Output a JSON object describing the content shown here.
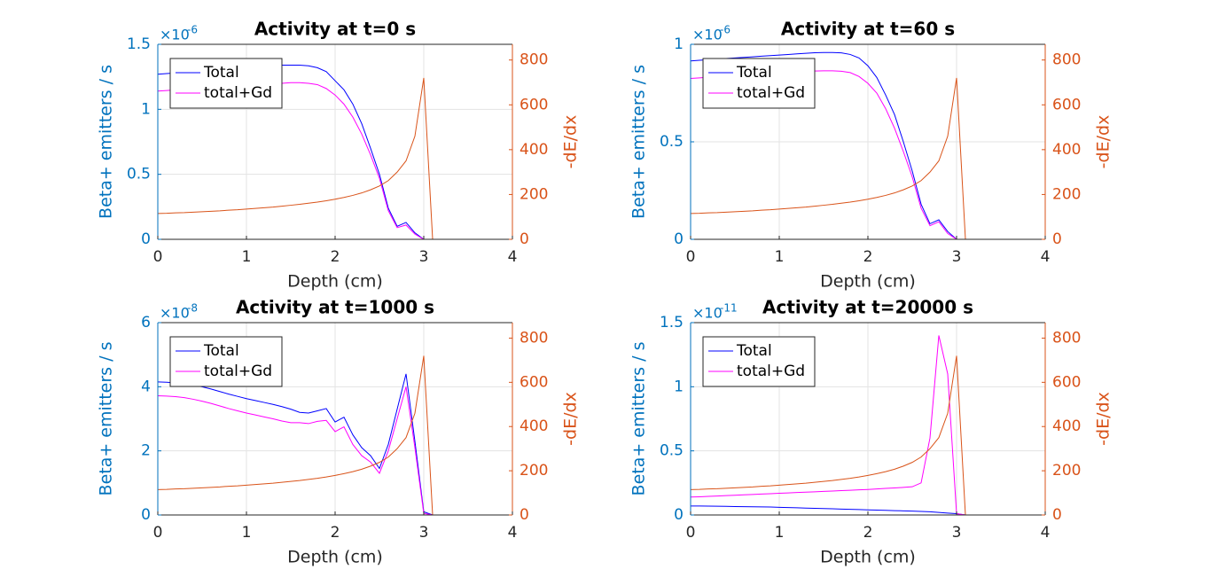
{
  "chart_data": [
    {
      "type": "line",
      "title": "Activity at t=0 s",
      "xlabel": "Depth (cm)",
      "ylabel": "Beta+ emitters / s",
      "y2label": "-dE/dx",
      "y_exponent_base": "×10",
      "y_exponent": "-6",
      "y_color": "#0072bd",
      "y2_color": "#d95319",
      "grid": true,
      "legend": "northwest",
      "x": [
        0,
        0.1,
        0.2,
        0.3,
        0.4,
        0.5,
        0.6,
        0.7,
        0.8,
        0.9,
        1,
        1.1,
        1.2,
        1.3,
        1.4,
        1.5,
        1.6,
        1.7,
        1.8,
        1.9,
        2,
        2.1,
        2.2,
        2.3,
        2.4,
        2.5,
        2.6,
        2.7,
        2.8,
        2.9,
        3,
        3.1,
        4
      ],
      "xlim": [
        0,
        4
      ],
      "xticks": [
        0,
        1,
        2,
        3,
        4
      ],
      "ylim": [
        0,
        1.5
      ],
      "yticks": [
        0,
        0.5,
        1,
        1.5
      ],
      "y2lim": [
        0,
        870
      ],
      "y2ticks": [
        0,
        200,
        400,
        600,
        800
      ],
      "series": [
        {
          "name": "Total",
          "color": "#0000ff",
          "values": [
            1.27,
            1.275,
            1.28,
            1.285,
            1.29,
            1.295,
            1.3,
            1.305,
            1.31,
            1.315,
            1.32,
            1.325,
            1.33,
            1.335,
            1.34,
            1.34,
            1.34,
            1.335,
            1.32,
            1.29,
            1.22,
            1.15,
            1.04,
            0.89,
            0.7,
            0.5,
            0.24,
            0.1,
            0.13,
            0.05,
            0,
            0,
            0
          ]
        },
        {
          "name": "total+Gd",
          "color": "#ff00ff",
          "values": [
            1.14,
            1.145,
            1.15,
            1.155,
            1.16,
            1.165,
            1.17,
            1.175,
            1.18,
            1.185,
            1.19,
            1.19,
            1.195,
            1.2,
            1.2,
            1.205,
            1.205,
            1.2,
            1.19,
            1.16,
            1.11,
            1.04,
            0.94,
            0.81,
            0.65,
            0.47,
            0.22,
            0.09,
            0.11,
            0.04,
            0,
            0,
            0
          ]
        },
        {
          "axis": "y2",
          "color": "#d95319",
          "values": [
            115,
            116,
            118,
            119,
            121,
            123,
            125,
            127,
            130,
            132,
            135,
            138,
            141,
            144,
            148,
            152,
            156,
            161,
            166,
            172,
            179,
            187,
            196,
            207,
            221,
            238,
            262,
            300,
            350,
            460,
            720,
            0,
            0
          ]
        }
      ]
    },
    {
      "type": "line",
      "title": "Activity at t=60 s",
      "xlabel": "Depth (cm)",
      "ylabel": "Beta+ emitters / s",
      "y2label": "-dE/dx",
      "y_exponent_base": "×10",
      "y_exponent": "-6",
      "y_color": "#0072bd",
      "y2_color": "#d95319",
      "grid": true,
      "legend": "northwest",
      "x": [
        0,
        0.1,
        0.2,
        0.3,
        0.4,
        0.5,
        0.6,
        0.7,
        0.8,
        0.9,
        1,
        1.1,
        1.2,
        1.3,
        1.4,
        1.5,
        1.6,
        1.7,
        1.8,
        1.9,
        2,
        2.1,
        2.2,
        2.3,
        2.4,
        2.5,
        2.6,
        2.7,
        2.8,
        2.9,
        3,
        3.1,
        4
      ],
      "xlim": [
        0,
        4
      ],
      "xticks": [
        0,
        1,
        2,
        3,
        4
      ],
      "ylim": [
        0,
        1
      ],
      "yticks": [
        0,
        0.5,
        1
      ],
      "y2lim": [
        0,
        870
      ],
      "y2ticks": [
        0,
        200,
        400,
        600,
        800
      ],
      "series": [
        {
          "name": "Total",
          "color": "#0000ff",
          "values": [
            0.915,
            0.918,
            0.921,
            0.924,
            0.927,
            0.93,
            0.933,
            0.936,
            0.939,
            0.942,
            0.945,
            0.948,
            0.951,
            0.954,
            0.957,
            0.958,
            0.958,
            0.956,
            0.948,
            0.93,
            0.89,
            0.83,
            0.74,
            0.64,
            0.5,
            0.35,
            0.18,
            0.08,
            0.1,
            0.04,
            0,
            0,
            0
          ]
        },
        {
          "name": "total+Gd",
          "color": "#ff00ff",
          "values": [
            0.825,
            0.828,
            0.831,
            0.834,
            0.837,
            0.84,
            0.843,
            0.846,
            0.849,
            0.852,
            0.855,
            0.857,
            0.859,
            0.861,
            0.863,
            0.864,
            0.864,
            0.862,
            0.855,
            0.835,
            0.8,
            0.75,
            0.67,
            0.57,
            0.45,
            0.32,
            0.16,
            0.07,
            0.09,
            0.03,
            0,
            0,
            0
          ]
        },
        {
          "axis": "y2",
          "color": "#d95319",
          "values": [
            115,
            116,
            118,
            119,
            121,
            123,
            125,
            127,
            130,
            132,
            135,
            138,
            141,
            144,
            148,
            152,
            156,
            161,
            166,
            172,
            179,
            187,
            196,
            207,
            221,
            238,
            262,
            300,
            350,
            460,
            720,
            0,
            0
          ]
        }
      ]
    },
    {
      "type": "line",
      "title": "Activity at t=1000 s",
      "xlabel": "Depth (cm)",
      "ylabel": "Beta+ emitters / s",
      "y2label": "-dE/dx",
      "y_exponent_base": "×10",
      "y_exponent": "-8",
      "y_color": "#0072bd",
      "y2_color": "#d95319",
      "grid": true,
      "legend": "northwest",
      "x": [
        0,
        0.1,
        0.2,
        0.3,
        0.4,
        0.5,
        0.6,
        0.7,
        0.8,
        0.9,
        1,
        1.1,
        1.2,
        1.3,
        1.4,
        1.5,
        1.6,
        1.7,
        1.8,
        1.9,
        2,
        2.1,
        2.2,
        2.3,
        2.4,
        2.5,
        2.6,
        2.7,
        2.8,
        2.9,
        3,
        3.1,
        4
      ],
      "xlim": [
        0,
        4
      ],
      "xticks": [
        0,
        1,
        2,
        3,
        4
      ],
      "ylim": [
        0,
        6
      ],
      "yticks": [
        0,
        2,
        4,
        6
      ],
      "y2lim": [
        0,
        870
      ],
      "y2ticks": [
        0,
        200,
        400,
        600,
        800
      ],
      "series": [
        {
          "name": "Total",
          "color": "#0000ff",
          "values": [
            4.15,
            4.14,
            4.12,
            4.1,
            4.05,
            4.0,
            3.93,
            3.85,
            3.77,
            3.7,
            3.63,
            3.57,
            3.51,
            3.45,
            3.38,
            3.3,
            3.2,
            3.18,
            3.25,
            3.32,
            2.9,
            3.05,
            2.5,
            2.1,
            1.85,
            1.45,
            2.2,
            3.3,
            4.4,
            2.3,
            0.1,
            0,
            0
          ]
        },
        {
          "name": "total+Gd",
          "color": "#ff00ff",
          "values": [
            3.72,
            3.71,
            3.69,
            3.66,
            3.61,
            3.55,
            3.48,
            3.4,
            3.32,
            3.25,
            3.18,
            3.12,
            3.06,
            3.0,
            2.93,
            2.88,
            2.88,
            2.85,
            2.92,
            2.95,
            2.6,
            2.75,
            2.2,
            1.85,
            1.65,
            1.3,
            2.0,
            3.0,
            4.0,
            2.1,
            0.05,
            0,
            0
          ]
        },
        {
          "axis": "y2",
          "color": "#d95319",
          "values": [
            115,
            116,
            118,
            119,
            121,
            123,
            125,
            127,
            130,
            132,
            135,
            138,
            141,
            144,
            148,
            152,
            156,
            161,
            166,
            172,
            179,
            187,
            196,
            207,
            221,
            238,
            262,
            300,
            350,
            460,
            720,
            0,
            0
          ]
        }
      ]
    },
    {
      "type": "line",
      "title": "Activity at t=20000 s",
      "xlabel": "Depth (cm)",
      "ylabel": "Beta+ emitters / s",
      "y2label": "-dE/dx",
      "y_exponent_base": "×10",
      "y_exponent": "-11",
      "y_color": "#0072bd",
      "y2_color": "#d95319",
      "grid": true,
      "legend": "northwest",
      "x": [
        0,
        0.1,
        0.2,
        0.3,
        0.4,
        0.5,
        0.6,
        0.7,
        0.8,
        0.9,
        1,
        1.1,
        1.2,
        1.3,
        1.4,
        1.5,
        1.6,
        1.7,
        1.8,
        1.9,
        2,
        2.1,
        2.2,
        2.3,
        2.4,
        2.5,
        2.6,
        2.7,
        2.8,
        2.9,
        3,
        3.1,
        4
      ],
      "xlim": [
        0,
        4
      ],
      "xticks": [
        0,
        1,
        2,
        3,
        4
      ],
      "ylim": [
        0,
        1.5
      ],
      "yticks": [
        0,
        0.5,
        1,
        1.5
      ],
      "y2lim": [
        0,
        870
      ],
      "y2ticks": [
        0,
        200,
        400,
        600,
        800
      ],
      "series": [
        {
          "name": "Total",
          "color": "#0000ff",
          "values": [
            0.07,
            0.07,
            0.069,
            0.068,
            0.067,
            0.066,
            0.065,
            0.064,
            0.063,
            0.062,
            0.06,
            0.058,
            0.056,
            0.054,
            0.052,
            0.05,
            0.048,
            0.046,
            0.044,
            0.042,
            0.04,
            0.038,
            0.036,
            0.034,
            0.032,
            0.03,
            0.028,
            0.025,
            0.02,
            0.015,
            0.01,
            0,
            0
          ]
        },
        {
          "name": "total+Gd",
          "color": "#ff00ff",
          "values": [
            0.14,
            0.142,
            0.145,
            0.148,
            0.151,
            0.154,
            0.157,
            0.16,
            0.163,
            0.166,
            0.169,
            0.172,
            0.175,
            0.178,
            0.181,
            0.184,
            0.187,
            0.19,
            0.193,
            0.196,
            0.199,
            0.203,
            0.207,
            0.211,
            0.215,
            0.22,
            0.25,
            0.6,
            1.4,
            1.1,
            0.01,
            0,
            0
          ]
        },
        {
          "axis": "y2",
          "color": "#d95319",
          "values": [
            115,
            116,
            118,
            119,
            121,
            123,
            125,
            127,
            130,
            132,
            135,
            138,
            141,
            144,
            148,
            152,
            156,
            161,
            166,
            172,
            179,
            187,
            196,
            207,
            221,
            238,
            262,
            300,
            350,
            460,
            720,
            0,
            0
          ]
        }
      ]
    }
  ]
}
